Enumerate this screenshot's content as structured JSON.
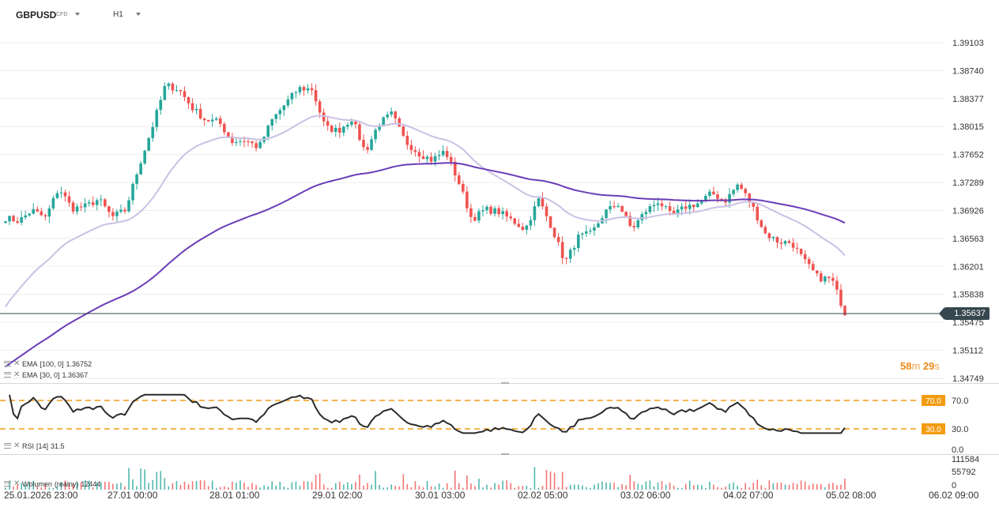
{
  "header": {
    "symbol": "GBPUSD",
    "instrument_type": "CFD",
    "timeframe": "H1"
  },
  "price_axis": {
    "labels": [
      "1.39103",
      "1.38740",
      "1.38377",
      "1.38015",
      "1.37652",
      "1.37289",
      "1.36926",
      "1.36563",
      "1.36201",
      "1.35838",
      "1.35475",
      "1.35112",
      "1.34749"
    ]
  },
  "current_price": "1.35637",
  "countdown": {
    "minutes": "58",
    "minutes_unit": "m",
    "seconds": "29",
    "seconds_unit": "s"
  },
  "indicators": {
    "ema100": {
      "label": "EMA",
      "params": "[100, 0]",
      "value": "1.36752"
    },
    "ema30": {
      "label": "EMA",
      "params": "[30, 0]",
      "value": "1.36367"
    },
    "rsi": {
      "label": "RSI",
      "params": "[14]",
      "value": "31.5",
      "upper": "70.0",
      "lower": "30.0",
      "axis": [
        "70.0",
        "30.0",
        "0.0"
      ]
    },
    "volume": {
      "label": "Wolumen",
      "params": "(realny)",
      "value": "12444",
      "axis": [
        "111584",
        "55792",
        "0"
      ]
    }
  },
  "time_axis": [
    "25.01.2026   23:00",
    "27.01   00:00",
    "28.01   01:00",
    "29.01   02:00",
    "30.01   03:00",
    "02.02   05:00",
    "03.02   06:00",
    "04.02   07:00",
    "05.02   08:00",
    "06.02   09:00"
  ],
  "colors": {
    "up": "#26a69a",
    "down": "#ef5350",
    "ema100": "#6a3db8",
    "ema30": "#c9bde3",
    "rsi_level": "#f39c12",
    "price_line": "#37474f"
  },
  "chart_data": {
    "type": "candlestick",
    "title": "GBPUSD CFD H1",
    "ylim": [
      1.34749,
      1.39103
    ],
    "y_ticks": [
      1.39103,
      1.3874,
      1.38377,
      1.38015,
      1.37652,
      1.37289,
      1.36926,
      1.36563,
      1.36201,
      1.35838,
      1.35475,
      1.35112,
      1.34749
    ],
    "close_anchors": [
      1.3683,
      1.3679,
      1.3693,
      1.3683,
      1.3722,
      1.3695,
      1.3698,
      1.3707,
      1.3684,
      1.3693,
      1.3749,
      1.38,
      1.3855,
      1.385,
      1.3826,
      1.381,
      1.3808,
      1.3782,
      1.3784,
      1.3774,
      1.381,
      1.3831,
      1.3851,
      1.385,
      1.38,
      1.3796,
      1.3812,
      1.3768,
      1.3805,
      1.3818,
      1.3782,
      1.3767,
      1.3758,
      1.377,
      1.373,
      1.3681,
      1.3694,
      1.3691,
      1.368,
      1.3668,
      1.3707,
      1.3671,
      1.3625,
      1.3658,
      1.3663,
      1.3691,
      1.3701,
      1.3668,
      1.3691,
      1.3705,
      1.3685,
      1.3697,
      1.3702,
      1.3715,
      1.3705,
      1.3727,
      1.37,
      1.3663,
      1.3652,
      1.3651,
      1.3626,
      1.3605,
      1.3604,
      1.356
    ],
    "ema100": {
      "value": 1.36752
    },
    "ema30": {
      "value": 1.36367
    },
    "rsi": {
      "period": 14,
      "value": 31.5,
      "levels": [
        70,
        30
      ]
    },
    "volume": {
      "value": 12444,
      "ylim": [
        0,
        111584
      ]
    },
    "x_labels": [
      "25.01.2026 23:00",
      "27.01 00:00",
      "28.01 01:00",
      "29.01 02:00",
      "30.01 03:00",
      "02.02 05:00",
      "03.02 06:00",
      "04.02 07:00",
      "05.02 08:00",
      "06.02 09:00"
    ]
  }
}
